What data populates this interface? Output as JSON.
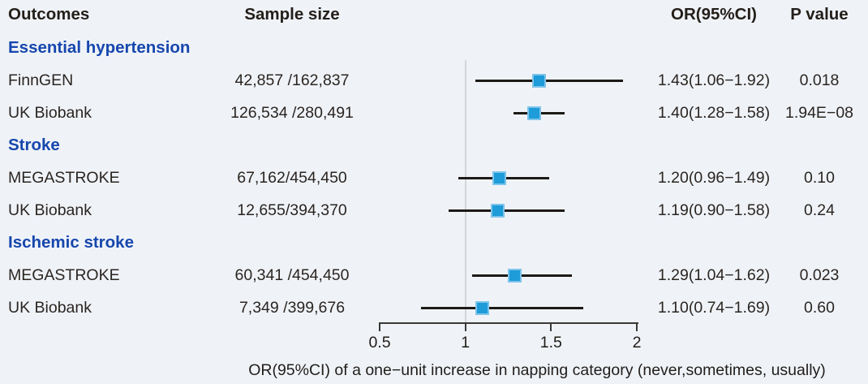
{
  "headers": {
    "outcomes": "Outcomes",
    "sample_size": "Sample size",
    "or_ci": "OR(95%CI)",
    "p_value": "P value"
  },
  "colors": {
    "background": "#eff3f8",
    "group_header_text": "#1747ad",
    "body_text": "#2b2521",
    "marker_fill": "#1d9cd9",
    "marker_border": "#7fc4ea",
    "ci_line": "#1d1a17",
    "reference_line": "#d2d6db",
    "axis": "#3b3937"
  },
  "chart_data": {
    "type": "forest",
    "xlabel": "OR(95%CI) of a one−unit increase in napping category (never,sometimes, usually)",
    "x_range": [
      0.5,
      2
    ],
    "x_tick_labels": [
      "0.5",
      "1",
      "1.5",
      "2"
    ],
    "x_tick_values": [
      0.5,
      1,
      1.5,
      2
    ],
    "reference_line": 1,
    "rows": [
      {
        "kind": "group",
        "label": "Essential hypertension"
      },
      {
        "kind": "study",
        "label": "FinnGEN",
        "sample": "42,857 /162,837",
        "or": 1.43,
        "ci_low": 1.06,
        "ci_high": 1.92,
        "or_ci": "1.43(1.06−1.92)",
        "p": "0.018"
      },
      {
        "kind": "study",
        "label": "UK Biobank",
        "sample": "126,534 /280,491",
        "or": 1.4,
        "ci_low": 1.28,
        "ci_high": 1.58,
        "or_ci": "1.40(1.28−1.58)",
        "p": "1.94E−08"
      },
      {
        "kind": "group",
        "label": "Stroke"
      },
      {
        "kind": "study",
        "label": "MEGASTROKE",
        "sample": "67,162/454,450",
        "or": 1.2,
        "ci_low": 0.96,
        "ci_high": 1.49,
        "or_ci": "1.20(0.96−1.49)",
        "p": "0.10"
      },
      {
        "kind": "study",
        "label": "UK Biobank",
        "sample": "12,655/394,370",
        "or": 1.19,
        "ci_low": 0.9,
        "ci_high": 1.58,
        "or_ci": "1.19(0.90−1.58)",
        "p": "0.24"
      },
      {
        "kind": "group",
        "label": "Ischemic stroke"
      },
      {
        "kind": "study",
        "label": "MEGASTROKE",
        "sample": "60,341 /454,450",
        "or": 1.29,
        "ci_low": 1.04,
        "ci_high": 1.62,
        "or_ci": "1.29(1.04−1.62)",
        "p": "0.023"
      },
      {
        "kind": "study",
        "label": "UK Biobank",
        "sample": "7,349 /399,676",
        "or": 1.1,
        "ci_low": 0.74,
        "ci_high": 1.69,
        "or_ci": "1.10(0.74−1.69)",
        "p": "0.60"
      }
    ]
  }
}
